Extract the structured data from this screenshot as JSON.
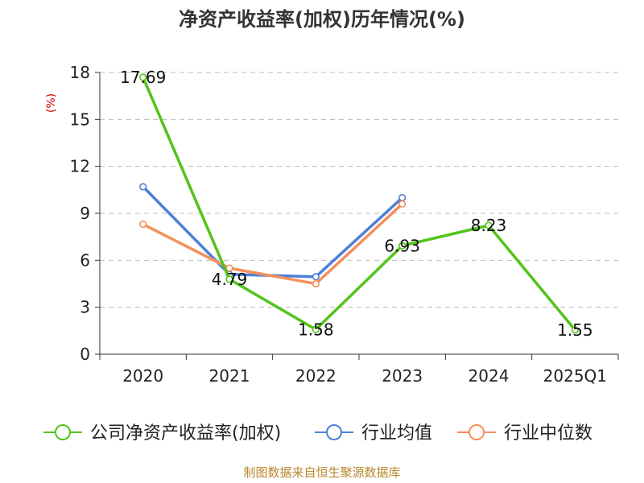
{
  "chart_data": {
    "type": "line",
    "title": "净资产收益率(加权)历年情况(%)",
    "ylabel": "(%)",
    "xlabel": "",
    "categories": [
      "2020",
      "2021",
      "2022",
      "2023",
      "2024",
      "2025Q1"
    ],
    "ylim": [
      0,
      18
    ],
    "yticks": [
      0,
      3,
      6,
      9,
      12,
      15,
      18
    ],
    "grid": true,
    "legend_position": "bottom",
    "series": [
      {
        "name": "公司净资产收益率(加权)",
        "color": "#52c41a",
        "values": [
          17.69,
          4.79,
          1.58,
          6.93,
          8.23,
          1.55
        ],
        "show_labels": true
      },
      {
        "name": "行业均值",
        "color": "#4e7fd9",
        "values": [
          10.7,
          5.1,
          4.95,
          10.0,
          null,
          null
        ],
        "show_labels": false
      },
      {
        "name": "行业中位数",
        "color": "#f5905b",
        "values": [
          8.3,
          5.5,
          4.5,
          9.6,
          null,
          null
        ],
        "show_labels": false
      }
    ]
  },
  "source": "制图数据来自恒生聚源数据库"
}
